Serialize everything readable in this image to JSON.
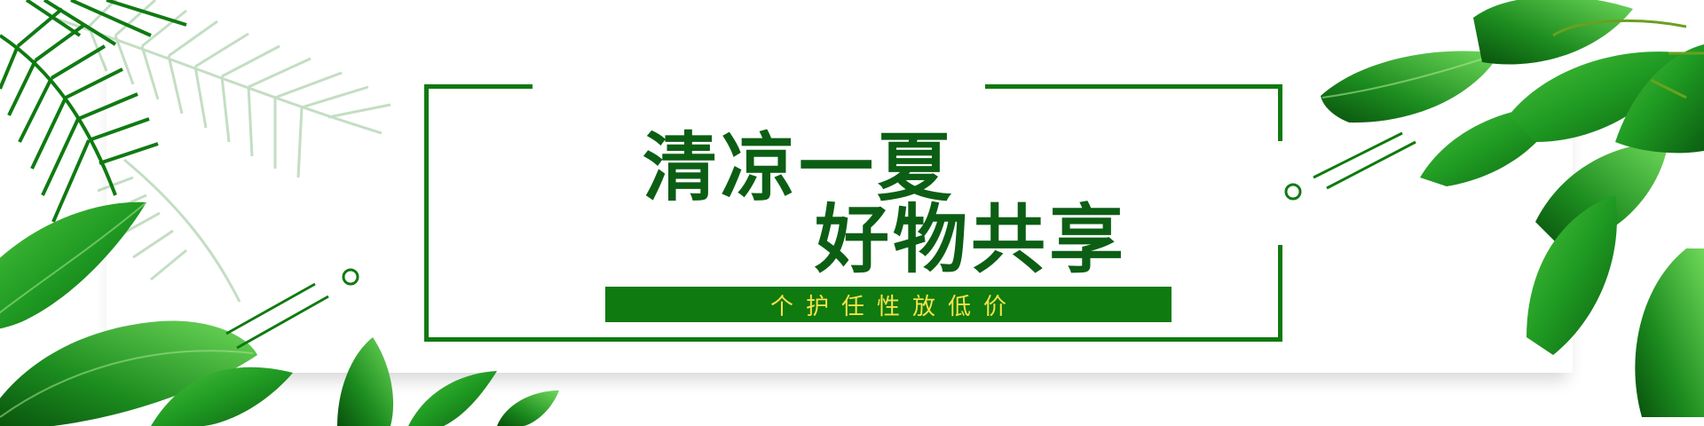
{
  "banner": {
    "headline_line1": "清凉一夏",
    "headline_line2": "好物共享",
    "tagline": "个护任性放低价"
  },
  "colors": {
    "frame_green": "#0f7a0f",
    "headline_green": "#0c5e14",
    "tagline_yellow": "#f6e34a",
    "leaf_dark": "#0d6e12",
    "leaf_mid": "#1f9a22",
    "leaf_light": "#4cc43d"
  },
  "icons": [
    "palm-frond",
    "banana-leaf",
    "tree-leaves",
    "ring-dot"
  ]
}
